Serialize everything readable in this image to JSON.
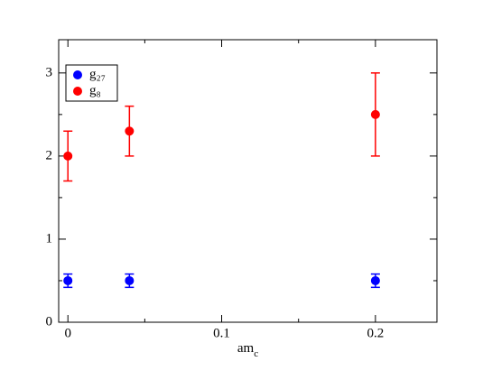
{
  "chart_data": {
    "type": "scatter",
    "x_label": "amc",
    "x": [
      0,
      0.04,
      0.2
    ],
    "series": [
      {
        "name": "g₂₇",
        "color": "#0000ff",
        "values": [
          0.5,
          0.5,
          0.5
        ],
        "errors": [
          0.08,
          0.08,
          0.08
        ]
      },
      {
        "name": "g₈",
        "color": "#ff0000",
        "values": [
          2.0,
          2.3,
          2.5
        ],
        "errors": [
          0.3,
          0.3,
          0.5
        ]
      }
    ],
    "xlim": [
      -0.006,
      0.24
    ],
    "xticks": [
      0,
      0.1,
      0.2
    ],
    "xminor": [
      0.05,
      0.15
    ],
    "ylim": [
      0,
      3.4
    ],
    "yticks": [
      0,
      1,
      2,
      3
    ],
    "yminor": [
      0.5,
      1.5,
      2.5
    ],
    "legend": "upper-left"
  }
}
